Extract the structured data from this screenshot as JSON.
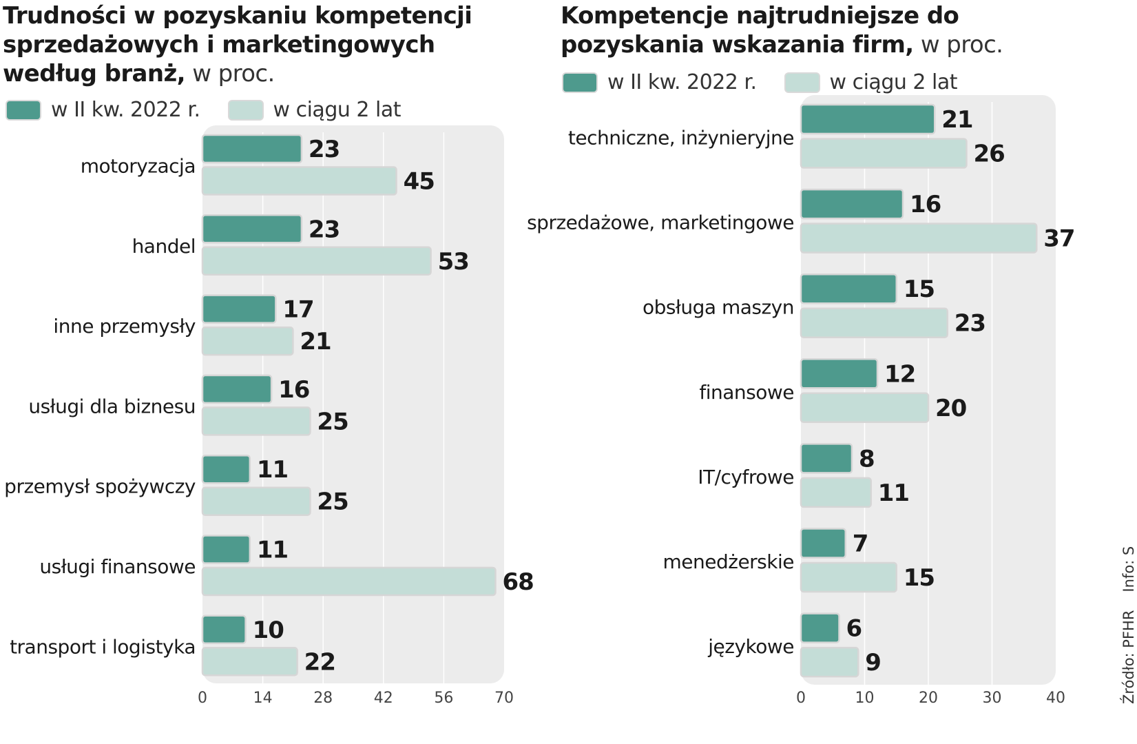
{
  "colors": {
    "current": "#4e9a8d",
    "two_years": "#c4ddd7",
    "plot_bg": "#ececec",
    "grid": "#ffffff"
  },
  "chart_data": [
    {
      "type": "bar",
      "orientation": "horizontal",
      "title": "Trudności w pozyskaniu kompetencji sprzedażowych i marketingowych według branż,",
      "title_unit": "w proc.",
      "categories": [
        "motoryzacja",
        "handel",
        "inne przemysły",
        "usługi dla biznesu",
        "przemysł spożywczy",
        "usługi finansowe",
        "transport i logistyka"
      ],
      "series": [
        {
          "name": "w II kw. 2022 r.",
          "values": [
            23,
            23,
            17,
            16,
            11,
            11,
            10
          ]
        },
        {
          "name": "w ciągu 2 lat",
          "values": [
            45,
            53,
            21,
            25,
            25,
            68,
            22
          ]
        }
      ],
      "xlim": [
        0,
        70
      ],
      "xticks": [
        0,
        14,
        28,
        42,
        56,
        70
      ],
      "grid": true,
      "legend": "top-left"
    },
    {
      "type": "bar",
      "orientation": "horizontal",
      "title": "Kompetencje najtrudniejsze do pozyskania wskazania firm,",
      "title_unit": "w proc.",
      "categories": [
        "techniczne, inżynieryjne",
        "sprzedażowe, marketingowe",
        "obsługa maszyn",
        "finansowe",
        "IT/cyfrowe",
        "menedżerskie",
        "językowe"
      ],
      "series": [
        {
          "name": "w II kw. 2022 r.",
          "values": [
            21,
            16,
            15,
            12,
            8,
            7,
            6
          ]
        },
        {
          "name": "w ciągu 2 lat",
          "values": [
            26,
            37,
            23,
            20,
            11,
            15,
            9
          ]
        }
      ],
      "xlim": [
        0,
        40
      ],
      "xticks": [
        0,
        10,
        20,
        30,
        40
      ],
      "grid": true,
      "legend": "top-left"
    }
  ],
  "source": {
    "text": "Źródło: PFHR",
    "credit": "Info: S"
  }
}
